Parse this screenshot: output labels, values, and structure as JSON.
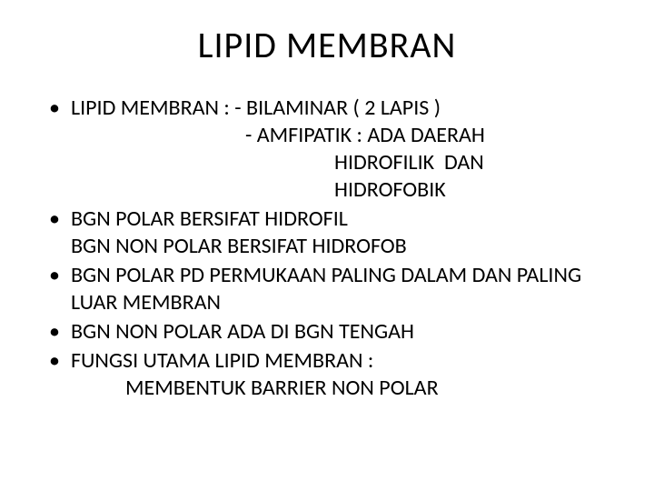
{
  "title": "LIPID  MEMBRAN",
  "bullets": [
    {
      "line1": "LIPID MEMBRAN : - BILAMINAR ( 2 LAPIS )",
      "line2": "- AMFIPATIK : ADA DAERAH",
      "line3": "HIDROFILIK  DAN",
      "line4": "HIDROFOBIK"
    },
    {
      "line1": "BGN POLAR BERSIFAT HIDROFIL",
      "line2": "BGN NON POLAR BERSIFAT HIDROFOB"
    },
    {
      "line1": "BGN POLAR PD PERMUKAAN PALING DALAM DAN PALING LUAR MEMBRAN"
    },
    {
      "line1": "BGN NON POLAR ADA DI BGN TENGAH"
    },
    {
      "line1": "FUNGSI UTAMA LIPID MEMBRAN :",
      "line2": "MEMBENTUK BARRIER NON POLAR"
    }
  ],
  "colors": {
    "background": "#ffffff",
    "text": "#000000"
  },
  "typography": {
    "title_fontsize": 40,
    "body_fontsize": 24,
    "font_family": "Calibri"
  }
}
